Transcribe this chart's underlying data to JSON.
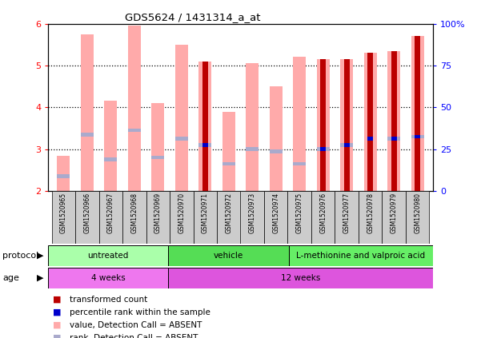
{
  "title": "GDS5624 / 1431314_a_at",
  "samples": [
    "GSM1520965",
    "GSM1520966",
    "GSM1520967",
    "GSM1520968",
    "GSM1520969",
    "GSM1520970",
    "GSM1520971",
    "GSM1520972",
    "GSM1520973",
    "GSM1520974",
    "GSM1520975",
    "GSM1520976",
    "GSM1520977",
    "GSM1520978",
    "GSM1520979",
    "GSM1520980"
  ],
  "pink_bar_tops": [
    2.85,
    5.75,
    4.15,
    5.95,
    4.1,
    5.5,
    5.1,
    3.9,
    5.05,
    4.5,
    5.2,
    5.15,
    5.15,
    5.3,
    5.35,
    5.7
  ],
  "pink_rank_vals": [
    2.35,
    3.35,
    2.75,
    3.45,
    2.8,
    3.25,
    3.1,
    2.65,
    3.0,
    2.95,
    2.65,
    3.0,
    3.1,
    null,
    3.25,
    3.3
  ],
  "red_bar_tops": [
    null,
    null,
    null,
    null,
    null,
    null,
    5.1,
    null,
    null,
    null,
    null,
    5.15,
    5.15,
    5.3,
    5.35,
    5.7
  ],
  "blue_dot_vals": [
    null,
    null,
    null,
    null,
    null,
    null,
    3.1,
    null,
    null,
    null,
    null,
    3.0,
    3.1,
    3.25,
    3.25,
    3.3
  ],
  "ylim_left": [
    2,
    6
  ],
  "ylim_right": [
    0,
    100
  ],
  "pink_color": "#FFAAAA",
  "red_color": "#BB0000",
  "blue_color": "#0000CC",
  "light_blue_color": "#AAAACC",
  "protocol_groups": [
    {
      "label": "untreated",
      "start": 0,
      "end": 4,
      "color": "#AAFFAA"
    },
    {
      "label": "vehicle",
      "start": 5,
      "end": 9,
      "color": "#55DD55"
    },
    {
      "label": "L-methionine and valproic acid",
      "start": 10,
      "end": 15,
      "color": "#66EE66"
    }
  ],
  "age_groups": [
    {
      "label": "4 weeks",
      "start": 0,
      "end": 4,
      "color": "#EE77EE"
    },
    {
      "label": "12 weeks",
      "start": 5,
      "end": 15,
      "color": "#DD55DD"
    }
  ],
  "dotted_line_vals": [
    3,
    4,
    5
  ],
  "legend_items": [
    {
      "label": "transformed count",
      "color": "#BB0000"
    },
    {
      "label": "percentile rank within the sample",
      "color": "#0000CC"
    },
    {
      "label": "value, Detection Call = ABSENT",
      "color": "#FFAAAA"
    },
    {
      "label": "rank, Detection Call = ABSENT",
      "color": "#AAAACC"
    }
  ]
}
